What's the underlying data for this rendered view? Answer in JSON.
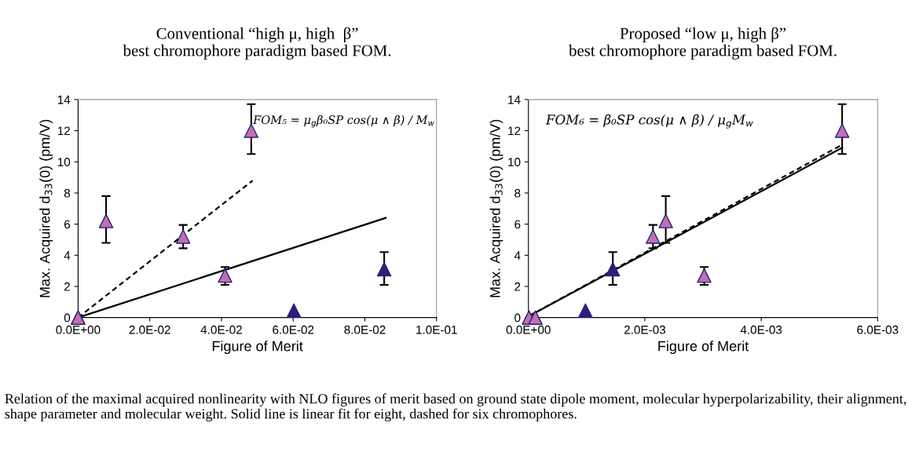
{
  "chart_data": [
    {
      "type": "scatter",
      "title": "Conventional “high μ, high  β”\nbest chromophore paradigm based FOM.",
      "xlabel": "Figure of Merit",
      "ylabel": "Max. Acquired d$_{33}$(0) (pm/V)",
      "xlim": [
        0,
        0.1
      ],
      "xticks": [
        {
          "value": 0,
          "label": "0.0E+00"
        },
        {
          "value": 0.02,
          "label": "2.0E-02"
        },
        {
          "value": 0.04,
          "label": "4.0E-02"
        },
        {
          "value": 0.06,
          "label": "6.0E-02"
        },
        {
          "value": 0.08,
          "label": "8.0E-02"
        },
        {
          "value": 0.1,
          "label": "1.0E-01"
        }
      ],
      "ylim": [
        0,
        14
      ],
      "yticks": [
        0,
        2,
        4,
        6,
        8,
        10,
        12,
        14
      ],
      "grid": false,
      "legend": false,
      "marker": "triangle",
      "series": [
        {
          "type": "line",
          "color": "#000000",
          "line_style": "solid",
          "marker": "none",
          "x": [
            0,
            0.0858
          ],
          "values": [
            0,
            6.4
          ]
        },
        {
          "type": "line",
          "color": "#000000",
          "line_style": "dashed",
          "marker": "none",
          "x": [
            0,
            0.0487
          ],
          "values": [
            0,
            8.8
          ]
        },
        {
          "color": "#c070b0",
          "x": [
            0,
            0,
            0.0078,
            0.0293,
            0.041,
            0.0483
          ],
          "values": [
            0,
            0,
            6.2,
            5.2,
            2.7,
            12.0
          ],
          "errors": [
            null,
            null,
            [
              4.8,
              7.8
            ],
            [
              4.45,
              5.95
            ],
            [
              2.1,
              3.25
            ],
            [
              10.5,
              13.7
            ]
          ]
        },
        {
          "color": "#2b1f7a",
          "x": [
            0.0602,
            0.0854
          ],
          "values": [
            0.45,
            3.1
          ],
          "errors": [
            null,
            [
              2.1,
              4.2
            ]
          ]
        }
      ],
      "annotations": [
        "FOM₅ = μ$_{g}$β₀SP cos(μ ∧ β) / M$_{w}$",
        "Relation of the maximal acquired nonlinearity with NLO figures of merit based on ground state dipole moment, molecular hyperpolarizability, their alignment, shape parameter and molecular weight. Solid line is linear fit for eight, dashed for six chromophores."
      ]
    },
    {
      "type": "scatter",
      "title": "Proposed “low μ, high β”\nbest chromophore paradigm based FOM.",
      "xlabel": "Figure of Merit",
      "ylabel": "Max. Acquired d$_{33}$(0) (pm/V)",
      "xlim": [
        0,
        0.006
      ],
      "xticks": [
        {
          "value": 0,
          "label": "0.0E+00"
        },
        {
          "value": 0.002,
          "label": "2.0E-03"
        },
        {
          "value": 0.004,
          "label": "4.0E-03"
        },
        {
          "value": 0.006,
          "label": "6.0E-03"
        }
      ],
      "ylim": [
        0,
        14
      ],
      "yticks": [
        0,
        2,
        4,
        6,
        8,
        10,
        12,
        14
      ],
      "grid": false,
      "legend": false,
      "marker": "triangle",
      "series": [
        {
          "type": "line",
          "color": "#000000",
          "line_style": "solid",
          "marker": "none",
          "x": [
            1e-05,
            0.00539
          ],
          "values": [
            0.1,
            10.9
          ]
        },
        {
          "type": "line",
          "color": "#000000",
          "line_style": "dashed",
          "marker": "none",
          "x": [
            1e-05,
            0.00539
          ],
          "values": [
            0.1,
            11.1
          ]
        },
        {
          "color": "#c070b0",
          "x": [
            1e-05,
            0.00012,
            0.00214,
            0.00236,
            0.00302,
            0.00539
          ],
          "values": [
            0,
            0,
            5.2,
            6.2,
            2.7,
            12.0
          ],
          "errors": [
            null,
            null,
            [
              4.45,
              5.95
            ],
            [
              4.8,
              7.8
            ],
            [
              2.1,
              3.25
            ],
            [
              10.5,
              13.7
            ]
          ]
        },
        {
          "color": "#2b1f7a",
          "x": [
            0.00098,
            0.00145
          ],
          "values": [
            0.45,
            3.1
          ],
          "errors": [
            null,
            [
              2.1,
              4.2
            ]
          ]
        }
      ],
      "annotations": [
        "FOM₆ = β₀SP cos(μ ∧ β) / μ$_{g}$M$_{w}$"
      ]
    }
  ]
}
